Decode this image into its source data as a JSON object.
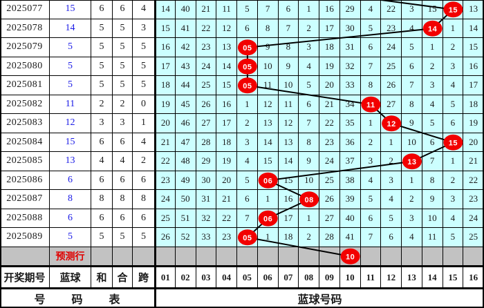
{
  "chart_data": {
    "type": "table",
    "footer_left": "号 码 表",
    "footer_right": "蓝球号码",
    "prediction_row_label": "预测行",
    "columns_left": [
      "开奖期号",
      "蓝球",
      "和",
      "合",
      "跨"
    ],
    "ball_numbers": [
      "01",
      "02",
      "03",
      "04",
      "05",
      "06",
      "07",
      "08",
      "09",
      "10",
      "11",
      "12",
      "13",
      "14",
      "15",
      "16"
    ],
    "prev_line_col": 8,
    "rows": [
      {
        "left": [
          "2025077",
          "15",
          "6",
          "6",
          "4"
        ],
        "miss": [
          "14",
          "40",
          "21",
          "11",
          "5",
          "7",
          "6",
          "1",
          "16",
          "29",
          "4",
          "22",
          "3",
          "15",
          "",
          "13"
        ],
        "drawn": {
          "col": 15,
          "label": "15"
        }
      },
      {
        "left": [
          "2025078",
          "14",
          "5",
          "5",
          "3"
        ],
        "miss": [
          "15",
          "41",
          "22",
          "12",
          "6",
          "8",
          "7",
          "2",
          "17",
          "30",
          "5",
          "23",
          "4",
          "",
          "1",
          "14"
        ],
        "drawn": {
          "col": 14,
          "label": "14"
        }
      },
      {
        "left": [
          "2025079",
          "5",
          "5",
          "5",
          "5"
        ],
        "miss": [
          "16",
          "42",
          "23",
          "13",
          "",
          "9",
          "8",
          "3",
          "18",
          "31",
          "6",
          "24",
          "5",
          "1",
          "2",
          "15"
        ],
        "drawn": {
          "col": 5,
          "label": "05"
        }
      },
      {
        "left": [
          "2025080",
          "5",
          "5",
          "5",
          "5"
        ],
        "miss": [
          "17",
          "43",
          "24",
          "14",
          "",
          "10",
          "9",
          "4",
          "19",
          "32",
          "7",
          "25",
          "6",
          "2",
          "3",
          "16"
        ],
        "drawn": {
          "col": 5,
          "label": "05"
        }
      },
      {
        "left": [
          "2025081",
          "5",
          "5",
          "5",
          "5"
        ],
        "miss": [
          "18",
          "44",
          "25",
          "15",
          "",
          "11",
          "10",
          "5",
          "20",
          "33",
          "8",
          "26",
          "7",
          "3",
          "4",
          "17"
        ],
        "drawn": {
          "col": 5,
          "label": "05"
        }
      },
      {
        "left": [
          "2025082",
          "11",
          "2",
          "2",
          "0"
        ],
        "miss": [
          "19",
          "45",
          "26",
          "16",
          "1",
          "12",
          "11",
          "6",
          "21",
          "34",
          "",
          "27",
          "8",
          "4",
          "5",
          "18"
        ],
        "drawn": {
          "col": 11,
          "label": "11"
        }
      },
      {
        "left": [
          "2025083",
          "12",
          "3",
          "3",
          "1"
        ],
        "miss": [
          "20",
          "46",
          "27",
          "17",
          "2",
          "13",
          "12",
          "7",
          "22",
          "35",
          "1",
          "",
          "9",
          "5",
          "6",
          "19"
        ],
        "drawn": {
          "col": 12,
          "label": "12"
        }
      },
      {
        "left": [
          "2025084",
          "15",
          "6",
          "6",
          "4"
        ],
        "miss": [
          "21",
          "47",
          "28",
          "18",
          "3",
          "14",
          "13",
          "8",
          "23",
          "36",
          "2",
          "1",
          "10",
          "6",
          "",
          "20"
        ],
        "drawn": {
          "col": 15,
          "label": "15"
        }
      },
      {
        "left": [
          "2025085",
          "13",
          "4",
          "4",
          "2"
        ],
        "miss": [
          "22",
          "48",
          "29",
          "19",
          "4",
          "15",
          "14",
          "9",
          "24",
          "37",
          "3",
          "2",
          "",
          "7",
          "1",
          "21"
        ],
        "drawn": {
          "col": 13,
          "label": "13"
        }
      },
      {
        "left": [
          "2025086",
          "6",
          "6",
          "6",
          "6"
        ],
        "miss": [
          "23",
          "49",
          "30",
          "20",
          "5",
          "",
          "15",
          "10",
          "25",
          "38",
          "4",
          "3",
          "1",
          "8",
          "2",
          "22"
        ],
        "drawn": {
          "col": 6,
          "label": "06"
        }
      },
      {
        "left": [
          "2025087",
          "8",
          "8",
          "8",
          "8"
        ],
        "miss": [
          "24",
          "50",
          "31",
          "21",
          "6",
          "1",
          "16",
          "",
          "26",
          "39",
          "5",
          "4",
          "2",
          "9",
          "3",
          "23"
        ],
        "drawn": {
          "col": 8,
          "label": "08"
        }
      },
      {
        "left": [
          "2025088",
          "6",
          "6",
          "6",
          "6"
        ],
        "miss": [
          "25",
          "51",
          "32",
          "22",
          "7",
          "",
          "17",
          "1",
          "27",
          "40",
          "6",
          "5",
          "3",
          "10",
          "4",
          "24"
        ],
        "drawn": {
          "col": 6,
          "label": "06"
        }
      },
      {
        "left": [
          "2025089",
          "5",
          "5",
          "5",
          "5"
        ],
        "miss": [
          "26",
          "52",
          "33",
          "23",
          "",
          "1",
          "18",
          "2",
          "28",
          "41",
          "7",
          "6",
          "4",
          "11",
          "5",
          "25"
        ],
        "drawn": {
          "col": 5,
          "label": "05"
        }
      }
    ],
    "prediction": {
      "col": 10,
      "label": "10"
    }
  },
  "colors": {
    "grid_bg": "#ccffff",
    "gray_row": "#c2c2c2",
    "ball_red": "#f20000",
    "blue_text": "#1a1ae6",
    "prediction_text": "#e00000",
    "text": "#1a1a1a",
    "line": "#000000"
  }
}
